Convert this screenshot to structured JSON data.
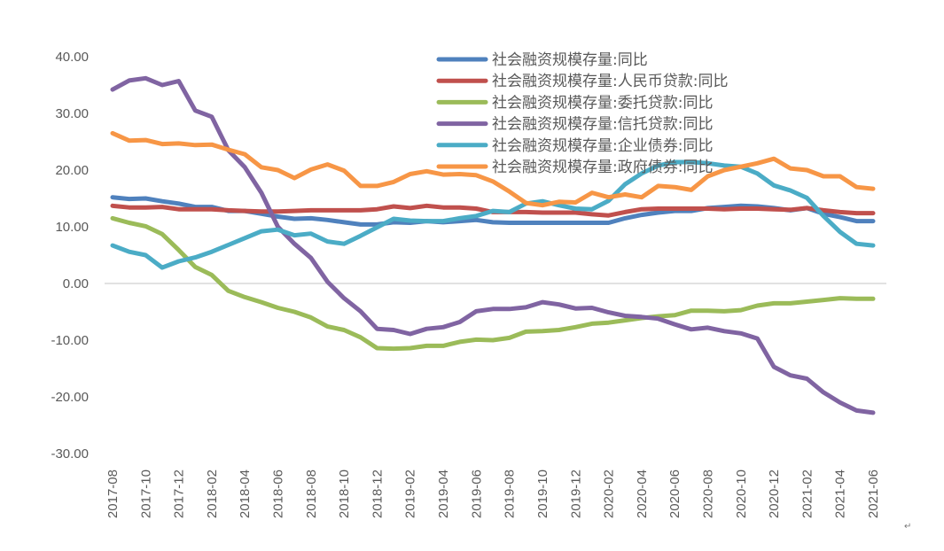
{
  "chart_data": {
    "type": "line",
    "title": "",
    "xlabel": "",
    "ylabel": "",
    "ylim": [
      -30,
      40
    ],
    "yticks": [
      "40.00",
      "30.00",
      "20.00",
      "10.00",
      "0.00",
      "-10.00",
      "-20.00",
      "-30.00"
    ],
    "grid": false,
    "legend_placement": "top-right",
    "categories": [
      "2017-08",
      "2017-09",
      "2017-10",
      "2017-11",
      "2017-12",
      "2018-01",
      "2018-02",
      "2018-03",
      "2018-04",
      "2018-05",
      "2018-06",
      "2018-07",
      "2018-08",
      "2018-09",
      "2018-10",
      "2018-11",
      "2018-12",
      "2019-01",
      "2019-02",
      "2019-03",
      "2019-04",
      "2019-05",
      "2019-06",
      "2019-07",
      "2019-08",
      "2019-09",
      "2019-10",
      "2019-11",
      "2019-12",
      "2020-01",
      "2020-02",
      "2020-03",
      "2020-04",
      "2020-05",
      "2020-06",
      "2020-07",
      "2020-08",
      "2020-09",
      "2020-10",
      "2020-11",
      "2020-12",
      "2021-01",
      "2021-02",
      "2021-03",
      "2021-04",
      "2021-05",
      "2021-06"
    ],
    "series": [
      {
        "name": "社会融资规模存量:同比",
        "color": "#4f81bd",
        "values": [
          15.2,
          14.9,
          15.0,
          14.5,
          14.1,
          13.5,
          13.5,
          12.8,
          12.8,
          12.3,
          11.8,
          11.4,
          11.5,
          11.2,
          10.8,
          10.4,
          10.4,
          10.8,
          10.7,
          11.0,
          10.8,
          11.0,
          11.2,
          10.8,
          10.7,
          10.7,
          10.7,
          10.7,
          10.7,
          10.7,
          10.7,
          11.5,
          12.1,
          12.5,
          12.8,
          12.8,
          13.3,
          13.5,
          13.7,
          13.6,
          13.3,
          12.9,
          13.3,
          12.3,
          11.7,
          11.0,
          11.0
        ]
      },
      {
        "name": "社会融资规模存量:人民币贷款:同比",
        "color": "#c0504d",
        "values": [
          13.7,
          13.4,
          13.4,
          13.5,
          13.1,
          13.1,
          13.1,
          12.9,
          12.8,
          12.7,
          12.7,
          12.8,
          12.9,
          12.9,
          12.9,
          12.9,
          13.1,
          13.6,
          13.3,
          13.7,
          13.4,
          13.4,
          13.2,
          12.6,
          12.6,
          12.6,
          12.5,
          12.5,
          12.5,
          12.2,
          12.0,
          12.6,
          13.1,
          13.2,
          13.2,
          13.2,
          13.2,
          13.1,
          13.2,
          13.2,
          13.1,
          13.0,
          13.3,
          12.9,
          12.6,
          12.4,
          12.4
        ]
      },
      {
        "name": "社会融资规模存量:委托贷款:同比",
        "color": "#9bbb59",
        "values": [
          11.5,
          10.7,
          10.1,
          8.7,
          5.9,
          2.9,
          1.5,
          -1.3,
          -2.4,
          -3.3,
          -4.3,
          -5.0,
          -6.0,
          -7.6,
          -8.2,
          -9.5,
          -11.4,
          -11.5,
          -11.4,
          -11.0,
          -11.0,
          -10.3,
          -9.9,
          -10.0,
          -9.6,
          -8.5,
          -8.4,
          -8.2,
          -7.7,
          -7.1,
          -6.9,
          -6.5,
          -6.1,
          -5.8,
          -5.6,
          -4.8,
          -4.8,
          -4.9,
          -4.7,
          -3.9,
          -3.5,
          -3.5,
          -3.2,
          -2.9,
          -2.6,
          -2.7,
          -2.7
        ]
      },
      {
        "name": "社会融资规模存量:信托贷款:同比",
        "color": "#8064a2",
        "values": [
          34.2,
          35.8,
          36.2,
          35.0,
          35.7,
          30.5,
          29.4,
          23.5,
          20.5,
          16.0,
          10.0,
          7.0,
          4.5,
          0.3,
          -2.6,
          -4.9,
          -8.0,
          -8.2,
          -8.9,
          -8.0,
          -7.7,
          -6.8,
          -4.9,
          -4.5,
          -4.5,
          -4.2,
          -3.3,
          -3.7,
          -4.4,
          -4.3,
          -5.1,
          -5.7,
          -5.9,
          -6.2,
          -7.2,
          -8.1,
          -7.8,
          -8.4,
          -8.8,
          -9.7,
          -14.7,
          -16.2,
          -16.8,
          -19.2,
          -21.0,
          -22.4,
          -22.8
        ]
      },
      {
        "name": "社会融资规模存量:企业债券:同比",
        "color": "#4bacc6",
        "values": [
          6.7,
          5.6,
          5.0,
          2.8,
          3.9,
          4.6,
          5.6,
          6.8,
          8.0,
          9.2,
          9.5,
          8.5,
          8.8,
          7.4,
          7.0,
          8.4,
          9.9,
          11.4,
          11.1,
          11.0,
          11.0,
          11.5,
          11.9,
          12.8,
          12.6,
          14.1,
          14.5,
          13.8,
          13.2,
          13.1,
          14.6,
          17.5,
          19.4,
          20.8,
          21.4,
          21.4,
          21.2,
          20.8,
          20.6,
          19.4,
          17.3,
          16.4,
          15.1,
          11.9,
          9.1,
          7.0,
          6.7
        ]
      },
      {
        "name": "社会融资规模存量:政府债券:同比",
        "color": "#f79646",
        "values": [
          26.5,
          25.2,
          25.3,
          24.6,
          24.7,
          24.4,
          24.5,
          23.6,
          22.8,
          20.5,
          20.0,
          18.6,
          20.1,
          21.0,
          19.9,
          17.2,
          17.2,
          17.9,
          19.3,
          19.8,
          19.2,
          19.3,
          19.1,
          18.0,
          16.2,
          14.2,
          13.8,
          14.4,
          14.3,
          16.0,
          15.2,
          15.7,
          15.2,
          17.2,
          17.0,
          16.5,
          18.9,
          20.0,
          20.6,
          21.2,
          22.0,
          20.3,
          20.0,
          18.9,
          18.9,
          17.0,
          16.7
        ]
      }
    ]
  },
  "footer_mark": "↵"
}
